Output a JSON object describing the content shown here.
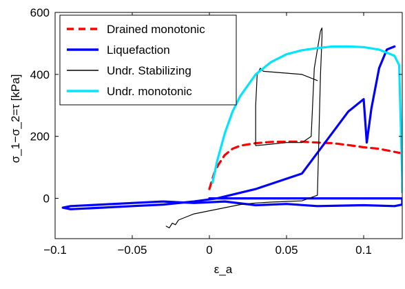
{
  "chart_data": {
    "type": "line",
    "title": "",
    "xlabel": "ε_a",
    "ylabel": "σ_1−σ_2=τ [kPa]",
    "xlim": [
      -0.1,
      0.125
    ],
    "ylim": [
      -130,
      600
    ],
    "xticks": [
      -0.1,
      -0.05,
      0,
      0.05,
      0.1
    ],
    "xtick_labels": [
      "−0.1",
      "−0.05",
      "0",
      "0.05",
      "0.1"
    ],
    "yticks": [
      0,
      200,
      400,
      600
    ],
    "ytick_labels": [
      "0",
      "200",
      "400",
      "600"
    ],
    "grid": false,
    "legend_position": "top-left",
    "series": [
      {
        "name": "Drained monotonic",
        "color": "#ff0000",
        "style": "dashed",
        "x": [
          0.0,
          0.003,
          0.006,
          0.01,
          0.015,
          0.02,
          0.03,
          0.04,
          0.05,
          0.06,
          0.07,
          0.08,
          0.09,
          0.1,
          0.11,
          0.12,
          0.125
        ],
        "y": [
          30,
          80,
          110,
          140,
          160,
          170,
          178,
          182,
          183,
          183,
          180,
          178,
          172,
          165,
          160,
          150,
          145
        ]
      },
      {
        "name": "Liquefaction",
        "color": "#0000ff",
        "style": "solid",
        "x": [
          0.0,
          0.03,
          0.06,
          0.08,
          0.1,
          0.11,
          0.115,
          0.118,
          0.12,
          0.121,
          0.122,
          0.123,
          0.125,
          0.125,
          0.12,
          0.1,
          0.07,
          0.05,
          0.03,
          0.01,
          -0.01,
          -0.03,
          -0.05,
          -0.07,
          -0.09,
          -0.095,
          -0.09,
          -0.07,
          -0.05,
          -0.03,
          -0.01,
          0.005,
          0.03,
          0.06,
          0.09,
          0.1,
          0.102,
          0.105,
          0.11,
          0.115,
          0.12
        ],
        "y": [
          0,
          0,
          0,
          0,
          0,
          0,
          0,
          0,
          0,
          0,
          0,
          0,
          0,
          -20,
          -25,
          -22,
          -25,
          -18,
          -22,
          -10,
          -15,
          -10,
          -15,
          -20,
          -25,
          -30,
          -35,
          -30,
          -25,
          -20,
          -10,
          0,
          30,
          80,
          280,
          320,
          180,
          290,
          420,
          480,
          490
        ]
      },
      {
        "name": "Undr. Stabilizing",
        "color": "#000000",
        "style": "solid",
        "x": [
          -0.028,
          -0.026,
          -0.024,
          -0.022,
          -0.02,
          -0.015,
          -0.01,
          0.0,
          0.01,
          0.02,
          0.03,
          0.04,
          0.05,
          0.06,
          0.07,
          0.071,
          0.072,
          0.073,
          0.073,
          0.072,
          0.07,
          0.068,
          0.066,
          0.06,
          0.05,
          0.04,
          0.03,
          0.03,
          0.031,
          0.033,
          0.035,
          0.06,
          0.07
        ],
        "y": [
          -90,
          -95,
          -80,
          -85,
          -70,
          -60,
          -50,
          -40,
          -30,
          -20,
          -15,
          -12,
          -10,
          -8,
          10,
          200,
          400,
          520,
          550,
          540,
          480,
          420,
          200,
          180,
          180,
          175,
          170,
          300,
          400,
          420,
          410,
          400,
          380
        ]
      },
      {
        "name": "Undr. monotonic",
        "color": "#00e5ff",
        "style": "solid",
        "x": [
          0.002,
          0.005,
          0.01,
          0.015,
          0.02,
          0.03,
          0.04,
          0.05,
          0.06,
          0.07,
          0.08,
          0.09,
          0.1,
          0.11,
          0.115,
          0.12,
          0.123,
          0.125,
          0.125
        ],
        "y": [
          50,
          120,
          210,
          280,
          330,
          400,
          440,
          465,
          478,
          485,
          490,
          490,
          488,
          480,
          470,
          460,
          430,
          60,
          20
        ]
      }
    ]
  }
}
